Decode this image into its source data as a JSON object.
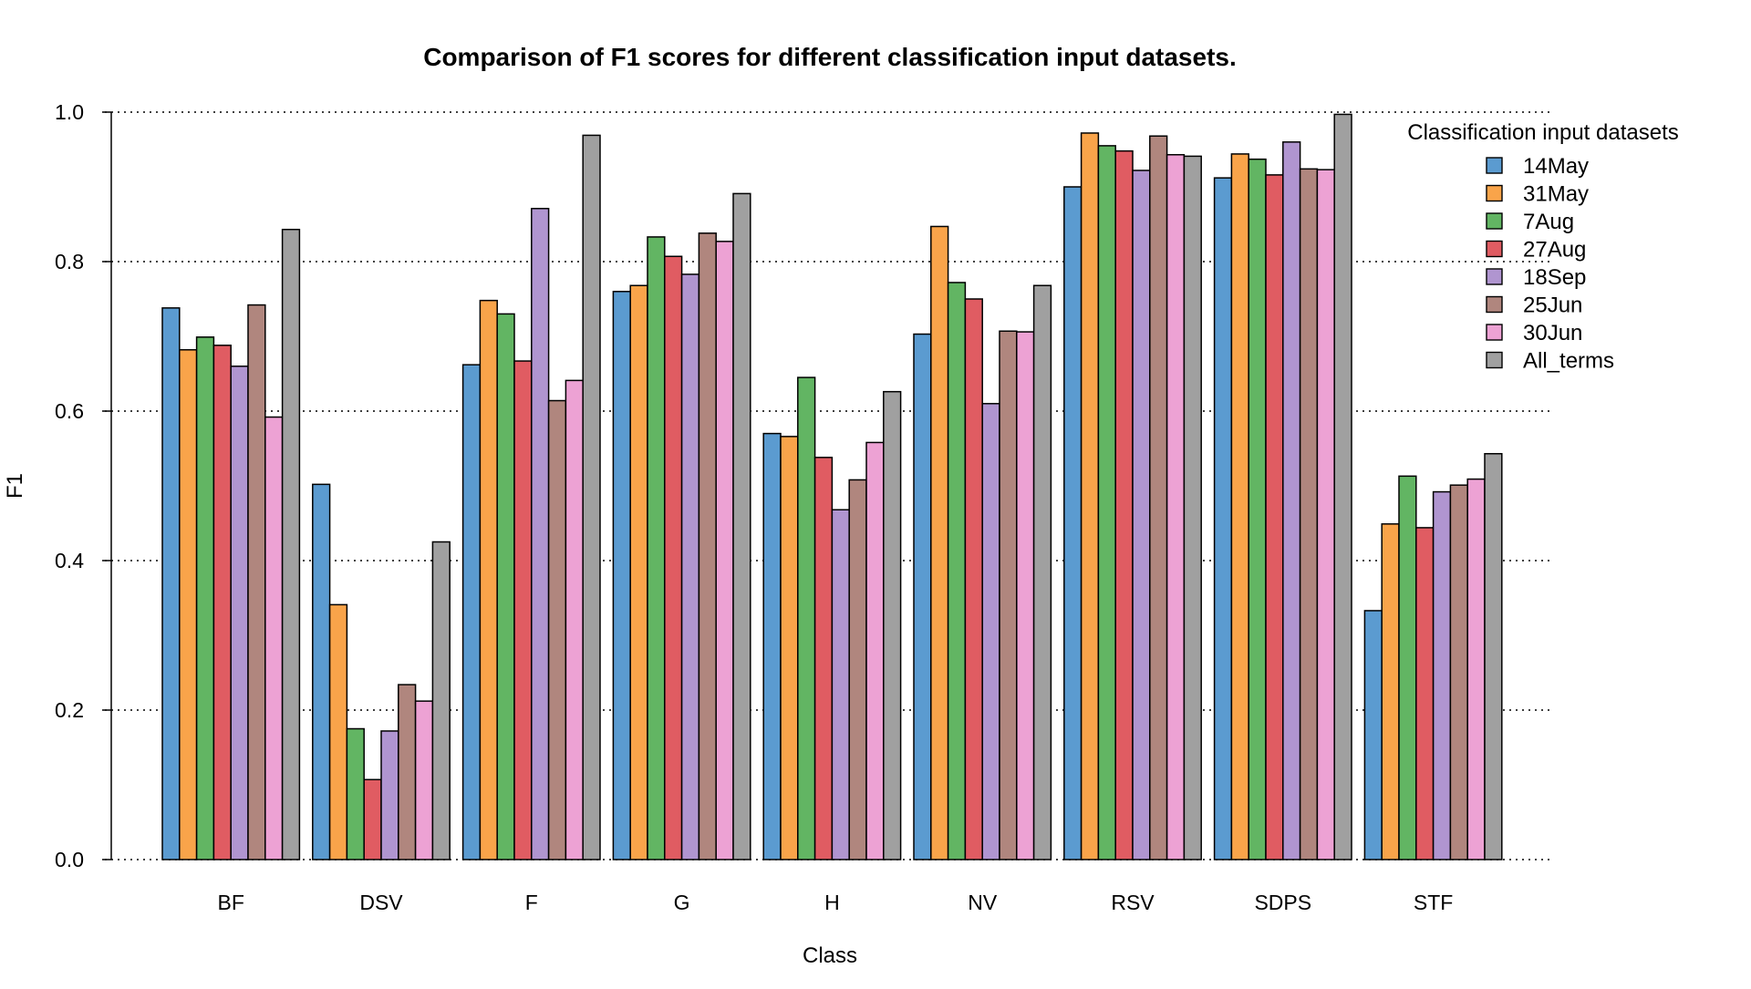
{
  "chart_data": {
    "type": "bar",
    "title": "Comparison of F1 scores for different classification input datasets.",
    "xlabel": "Class",
    "ylabel": "F1",
    "ylim": [
      0,
      1.0
    ],
    "yticks": [
      "0.0",
      "0.2",
      "0.4",
      "0.6",
      "0.8",
      "1.0"
    ],
    "grid": "horizontal-dotted",
    "legend": {
      "title": "Classification input datasets",
      "placement": "top-right"
    },
    "categories": [
      "BF",
      "DSV",
      "F",
      "G",
      "H",
      "NV",
      "RSV",
      "SDPS",
      "STF"
    ],
    "series": [
      {
        "name": "14May",
        "color": "#5b9bd0",
        "values": [
          0.738,
          0.502,
          0.662,
          0.76,
          0.57,
          0.703,
          0.9,
          0.912,
          0.333
        ]
      },
      {
        "name": "31May",
        "color": "#f9a44a",
        "values": [
          0.682,
          0.341,
          0.748,
          0.768,
          0.566,
          0.847,
          0.972,
          0.944,
          0.449
        ]
      },
      {
        "name": "7Aug",
        "color": "#62b563",
        "values": [
          0.699,
          0.175,
          0.73,
          0.833,
          0.645,
          0.772,
          0.955,
          0.937,
          0.513
        ]
      },
      {
        "name": "27Aug",
        "color": "#e05c62",
        "values": [
          0.688,
          0.107,
          0.667,
          0.807,
          0.538,
          0.75,
          0.948,
          0.916,
          0.444
        ]
      },
      {
        "name": "18Sep",
        "color": "#b095d0",
        "values": [
          0.66,
          0.172,
          0.871,
          0.783,
          0.468,
          0.61,
          0.922,
          0.96,
          0.492
        ]
      },
      {
        "name": "25Jun",
        "color": "#b0867e",
        "values": [
          0.742,
          0.234,
          0.614,
          0.838,
          0.508,
          0.707,
          0.968,
          0.924,
          0.501
        ]
      },
      {
        "name": "30Jun",
        "color": "#eda2d4",
        "values": [
          0.592,
          0.212,
          0.641,
          0.827,
          0.558,
          0.706,
          0.943,
          0.923,
          0.509
        ]
      },
      {
        "name": "All_terms",
        "color": "#a0a0a0",
        "values": [
          0.843,
          0.425,
          0.969,
          0.891,
          0.626,
          0.768,
          0.941,
          0.997,
          0.543
        ]
      }
    ]
  }
}
